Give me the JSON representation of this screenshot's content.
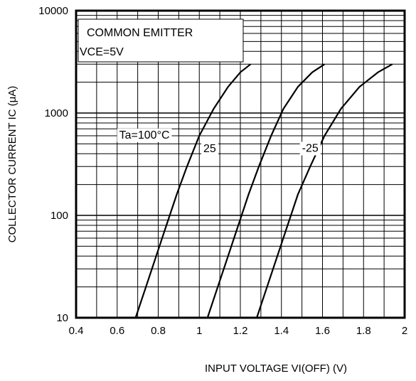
{
  "chart_data": {
    "type": "line",
    "xlabel": "INPUT VOLTAGE  VI(OFF)   (V)",
    "ylabel": "COLLECTOR CURRENT  IC   (μA)",
    "x_scale": "linear",
    "y_scale": "log",
    "xlim": [
      0.4,
      2.0
    ],
    "ylim": [
      10,
      10000
    ],
    "x_ticks": [
      "0.4",
      "0.6",
      "0.8",
      "1",
      "1.2",
      "1.4",
      "1.6",
      "1.8",
      "2"
    ],
    "y_ticks": [
      "10",
      "100",
      "1000",
      "10000"
    ],
    "grid": true,
    "legend_box": [
      "COMMON EMITTER",
      "VCE=5V"
    ],
    "series": [
      {
        "name": "Ta=100°C",
        "x": [
          0.69,
          0.74,
          0.79,
          0.84,
          0.89,
          0.94,
          1.0,
          1.07,
          1.14,
          1.2,
          1.25
        ],
        "y": [
          10,
          20,
          40,
          80,
          160,
          300,
          600,
          1100,
          1800,
          2500,
          3000
        ]
      },
      {
        "name": "25",
        "x": [
          1.04,
          1.09,
          1.14,
          1.19,
          1.24,
          1.29,
          1.35,
          1.41,
          1.48,
          1.55,
          1.61
        ],
        "y": [
          10,
          20,
          40,
          80,
          160,
          300,
          600,
          1100,
          1800,
          2500,
          3000
        ]
      },
      {
        "name": "-25",
        "x": [
          1.28,
          1.33,
          1.38,
          1.43,
          1.48,
          1.54,
          1.61,
          1.69,
          1.78,
          1.87,
          1.94
        ],
        "y": [
          10,
          20,
          40,
          80,
          160,
          300,
          600,
          1100,
          1800,
          2500,
          3000
        ]
      }
    ],
    "curve_labels": [
      {
        "text": "Ta=100°C",
        "x": 0.61,
        "y": 620
      },
      {
        "text": "25",
        "x": 1.02,
        "y": 455
      },
      {
        "text": "-25",
        "x": 1.5,
        "y": 460
      }
    ]
  }
}
